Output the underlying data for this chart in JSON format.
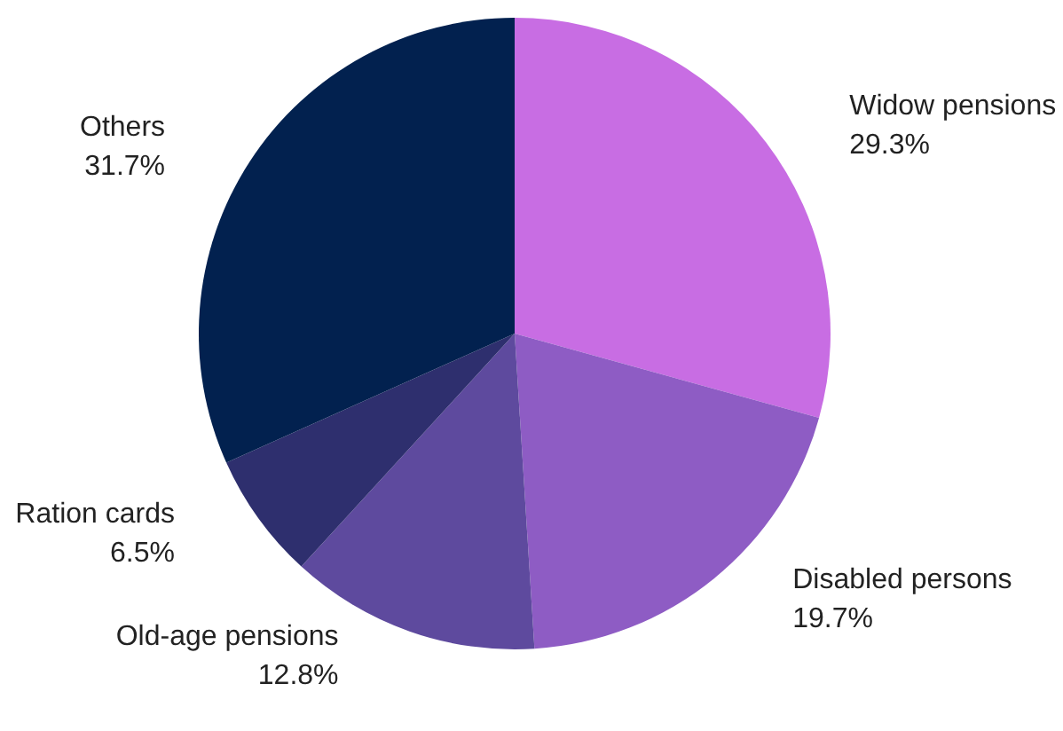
{
  "chart_data": {
    "type": "pie",
    "categories": [
      "Widow pensions",
      "Disabled persons",
      "Old-age pensions",
      "Ration cards",
      "Others"
    ],
    "values": [
      29.3,
      19.7,
      12.8,
      6.5,
      31.7
    ],
    "value_labels": [
      "29.3%",
      "19.7%",
      "12.8%",
      "6.5%",
      "31.7%"
    ],
    "colors": [
      "#c86de3",
      "#8e5cc4",
      "#5e4a9e",
      "#2e2f6e",
      "#02214f"
    ],
    "legend": false
  }
}
